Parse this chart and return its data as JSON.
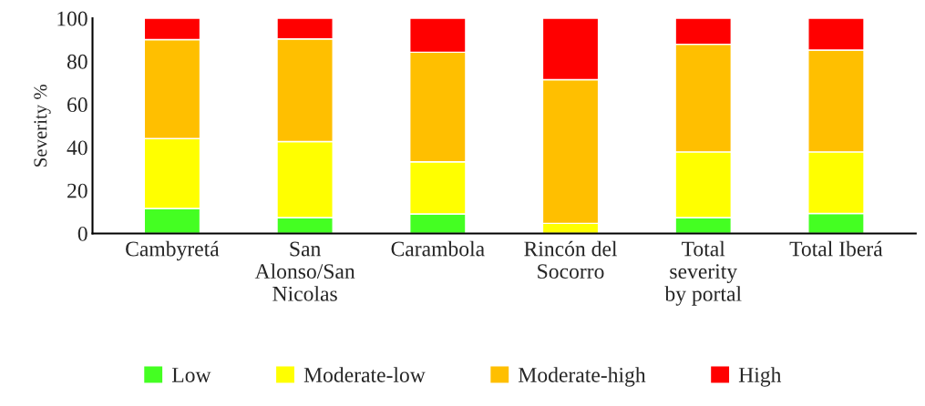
{
  "chart_data": {
    "type": "bar",
    "stacked": true,
    "ylabel": "Severity %",
    "categories": [
      "Cambyretá",
      "San\nAlonso/San\nNicolas",
      "Carambola",
      "Rincón del\nSocorro",
      "Total\nseverity\nby portal",
      "Total Iberá"
    ],
    "series": [
      {
        "name": "Low",
        "color": "#44ff22",
        "values": [
          11.6,
          7.4,
          9.1,
          0,
          7.4,
          9.3
        ]
      },
      {
        "name": "Moderate-low",
        "color": "#ffff00",
        "values": [
          32.5,
          35.3,
          24.2,
          4.7,
          30.5,
          28.6
        ]
      },
      {
        "name": "Moderate-high",
        "color": "#ffbf00",
        "values": [
          46.0,
          47.7,
          50.9,
          66.8,
          50.0,
          47.3
        ]
      },
      {
        "name": "High",
        "color": "#ff0000",
        "values": [
          9.9,
          9.6,
          15.8,
          28.5,
          12.1,
          14.8
        ]
      }
    ],
    "ylim": [
      0,
      100
    ],
    "yticks": [
      0,
      20,
      40,
      60,
      80,
      100
    ],
    "grid": false,
    "legend": "bottom"
  }
}
